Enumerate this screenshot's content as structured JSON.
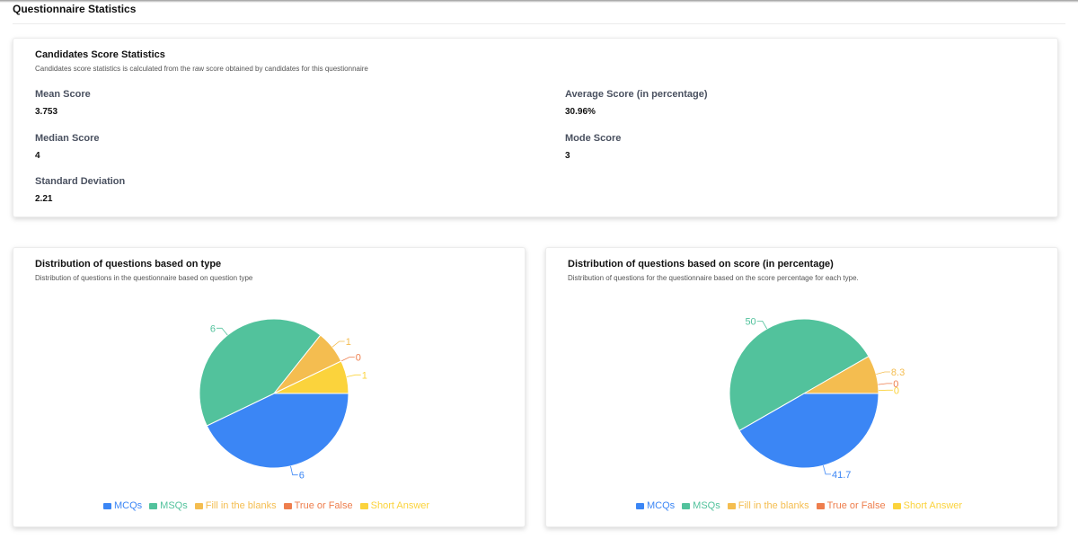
{
  "page": {
    "title": "Questionnaire Statistics"
  },
  "score_stats": {
    "title": "Candidates Score Statistics",
    "subtitle": "Candidates score statistics is calculated from the raw score obtained by candidates for this questionnaire",
    "mean_label": "Mean Score",
    "mean_value": "3.753",
    "average_label": "Average Score (in percentage)",
    "average_value": "30.96%",
    "median_label": "Median Score",
    "median_value": "4",
    "mode_label": "Mode Score",
    "mode_value": "3",
    "std_label": "Standard Deviation",
    "std_value": "2.21"
  },
  "type_card": {
    "title": "Distribution of questions based on type",
    "subtitle": "Distribution of questions in the questionnaire based on question type"
  },
  "score_card": {
    "title": "Distribution of questions based on score (in percentage)",
    "subtitle": "Distribution of questions for the questionnaire based on the score percentage for each type."
  },
  "legend": {
    "mcqs": "MCQs",
    "msqs": "MSQs",
    "fill": "Fill in the blanks",
    "tf": "True or False",
    "short": "Short Answer"
  },
  "chart_data": [
    {
      "type": "pie",
      "title": "Distribution of questions based on type",
      "categories": [
        "MCQs",
        "MSQs",
        "Fill in the blanks",
        "True or False",
        "Short Answer"
      ],
      "values": [
        6,
        6,
        1,
        0,
        1
      ],
      "labels": [
        "6",
        "6",
        "1",
        "0",
        "1"
      ],
      "colors": [
        "#3b86f5",
        "#52c29c",
        "#f4bd50",
        "#ee7e4d",
        "#fbd33c"
      ],
      "legend_position": "bottom"
    },
    {
      "type": "pie",
      "title": "Distribution of questions based on score (in percentage)",
      "categories": [
        "MCQs",
        "MSQs",
        "Fill in the blanks",
        "True or False",
        "Short Answer"
      ],
      "values": [
        41.7,
        50,
        8.3,
        0,
        0
      ],
      "labels": [
        "41.7",
        "50",
        "8.3",
        "0",
        "0"
      ],
      "colors": [
        "#3b86f5",
        "#52c29c",
        "#f4bd50",
        "#ee7e4d",
        "#fbd33c"
      ],
      "legend_position": "bottom"
    }
  ]
}
